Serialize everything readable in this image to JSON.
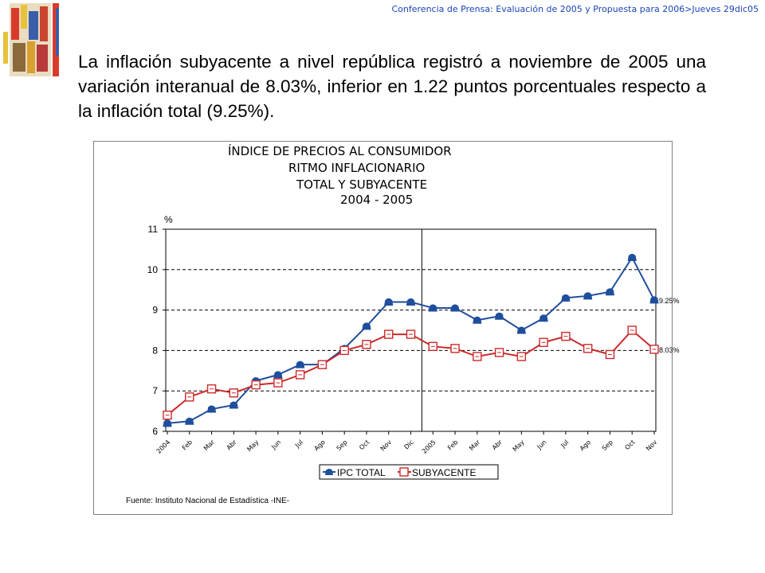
{
  "header": {
    "text": "Conferencia de Prensa: Evaluación de 2005 y Propuesta para 2006>Jueves 29dic05"
  },
  "intro": {
    "text": "La inflación subyacente a nivel república registró a noviembre de 2005 una variación interanual de 8.03%, inferior en 1.22 puntos porcentuales respecto a la inflación total (9.25%)."
  },
  "colors": {
    "header": "#1a44b8",
    "total": "#1f4e9c",
    "sub": "#cc2a2a",
    "grid": "#000000"
  },
  "chart_data": {
    "type": "line",
    "title_lines": [
      "ÍNDICE DE PRECIOS AL CONSUMIDOR",
      "RITMO INFLACIONARIO",
      "TOTAL Y SUBYACENTE",
      "2004 - 2005"
    ],
    "ylabel": "%",
    "ylim": [
      6,
      11
    ],
    "yticks": [
      "6",
      "7",
      "8",
      "9",
      "10",
      "11"
    ],
    "categories": [
      "2004",
      "Feb",
      "Mar",
      "Abr",
      "May",
      "Jun",
      "Jul",
      "Ago",
      "Sep",
      "Oct",
      "Nov",
      "Dic",
      "2005",
      "Feb",
      "Mar",
      "Abr",
      "May",
      "Jun",
      "Jul",
      "Ago",
      "Sep",
      "Oct",
      "Nov"
    ],
    "grid": "horizontal dashed",
    "year_divider_after": "Dic",
    "legend_position": "bottom",
    "series": [
      {
        "name": "IPC TOTAL",
        "marker": "phone-icon",
        "color": "#1f4e9c",
        "values": [
          6.2,
          6.25,
          6.55,
          6.65,
          7.25,
          7.4,
          7.65,
          7.65,
          8.05,
          8.6,
          9.2,
          9.2,
          9.05,
          9.05,
          8.75,
          8.85,
          8.5,
          8.8,
          9.3,
          9.35,
          9.45,
          10.3,
          9.25
        ],
        "end_label": "9.25%"
      },
      {
        "name": "SUBYACENTE",
        "marker": "square-icon",
        "color": "#cc2a2a",
        "values": [
          6.4,
          6.85,
          7.05,
          6.95,
          7.15,
          7.2,
          7.4,
          7.65,
          8.0,
          8.15,
          8.4,
          8.4,
          8.1,
          8.05,
          7.85,
          7.95,
          7.85,
          8.2,
          8.35,
          8.05,
          7.9,
          8.5,
          8.03
        ],
        "end_label": "8.03%"
      }
    ],
    "source_note": "Fuente: Instituto Nacional de Estadística -INE-"
  }
}
